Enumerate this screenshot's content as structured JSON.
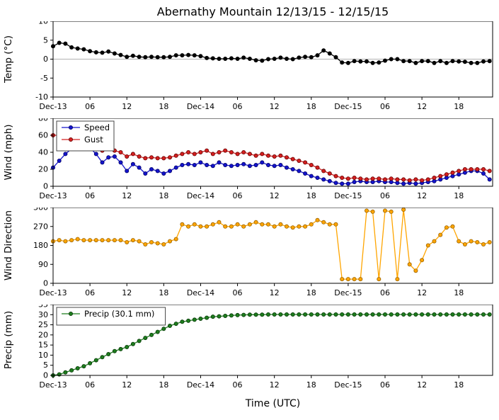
{
  "page": {
    "title": "Abernathy Mountain 12/13/15 - 12/15/15",
    "xlabel": "Time (UTC)"
  },
  "x_axis": {
    "range": [
      0,
      71.5
    ],
    "tick_positions": [
      0,
      6,
      12,
      18,
      24,
      30,
      36,
      42,
      48,
      54,
      60,
      66
    ],
    "tick_labels": [
      "Dec-13",
      "06",
      "12",
      "18",
      "Dec-14",
      "06",
      "12",
      "18",
      "Dec-15",
      "06",
      "12",
      "18"
    ],
    "hours": [
      0,
      1,
      2,
      3,
      4,
      5,
      6,
      7,
      8,
      9,
      10,
      11,
      12,
      13,
      14,
      15,
      16,
      17,
      18,
      19,
      20,
      21,
      22,
      23,
      24,
      25,
      26,
      27,
      28,
      29,
      30,
      31,
      32,
      33,
      34,
      35,
      36,
      37,
      38,
      39,
      40,
      41,
      42,
      43,
      44,
      45,
      46,
      47,
      48,
      49,
      50,
      51,
      52,
      53,
      54,
      55,
      56,
      57,
      58,
      59,
      60,
      61,
      62,
      63,
      64,
      65,
      66,
      67,
      68,
      69,
      70,
      71
    ]
  },
  "chart_data": [
    {
      "id": "temp",
      "type": "line",
      "ylabel": "Temp (°C)",
      "ylim": [
        -10,
        10
      ],
      "yticks": [
        10,
        5,
        0,
        -5,
        -10
      ],
      "zero_line": true,
      "series": [
        {
          "name": "Temp",
          "color": "#000000",
          "edge": "#000000",
          "values": [
            3.4,
            4.3,
            4.1,
            3.1,
            2.8,
            2.6,
            2.1,
            1.8,
            1.7,
            2.0,
            1.5,
            1.1,
            0.6,
            0.9,
            0.6,
            0.5,
            0.6,
            0.5,
            0.5,
            0.6,
            1.0,
            1.0,
            1.1,
            1.0,
            0.8,
            0.3,
            0.2,
            0.1,
            0.1,
            0.2,
            0.1,
            0.4,
            0.1,
            -0.3,
            -0.4,
            0.0,
            0.1,
            0.4,
            0.1,
            0.0,
            0.4,
            0.6,
            0.5,
            1.0,
            2.3,
            1.5,
            0.5,
            -0.9,
            -1.0,
            -0.5,
            -0.6,
            -0.6,
            -1.0,
            -0.9,
            -0.4,
            0.0,
            0.0,
            -0.5,
            -0.5,
            -1.0,
            -0.5,
            -0.5,
            -1.0,
            -0.5,
            -1.0,
            -0.5,
            -0.6,
            -0.7,
            -1.0,
            -1.0,
            -0.6,
            -0.5
          ]
        }
      ]
    },
    {
      "id": "wind",
      "type": "line",
      "ylabel": "Wind (mph)",
      "ylim": [
        0,
        80
      ],
      "yticks": [
        80,
        60,
        40,
        20,
        0
      ],
      "zero_line": false,
      "legend": [
        {
          "label": "Speed",
          "series": 0
        },
        {
          "label": "Gust",
          "series": 1
        }
      ],
      "series": [
        {
          "name": "Speed",
          "color": "#1414cc",
          "edge": "#000066",
          "values": [
            22,
            30,
            38,
            44,
            46,
            44,
            45,
            38,
            28,
            34,
            35,
            28,
            18,
            26,
            22,
            15,
            20,
            18,
            15,
            18,
            22,
            25,
            26,
            25,
            28,
            25,
            24,
            28,
            25,
            24,
            25,
            26,
            24,
            25,
            28,
            25,
            24,
            25,
            22,
            20,
            18,
            15,
            12,
            10,
            8,
            6,
            4,
            3,
            3,
            5,
            6,
            5,
            5,
            6,
            5,
            5,
            4,
            3,
            4,
            3,
            4,
            5,
            6,
            8,
            10,
            12,
            14,
            16,
            18,
            18,
            15,
            8
          ]
        },
        {
          "name": "Gust",
          "color": "#d42020",
          "edge": "#660000",
          "values": [
            60,
            60,
            56,
            52,
            50,
            48,
            46,
            44,
            42,
            44,
            42,
            40,
            35,
            38,
            35,
            33,
            34,
            33,
            33,
            34,
            36,
            38,
            40,
            38,
            40,
            42,
            38,
            40,
            42,
            40,
            38,
            40,
            38,
            36,
            38,
            36,
            35,
            36,
            34,
            32,
            30,
            28,
            25,
            22,
            18,
            15,
            12,
            10,
            9,
            10,
            9,
            8,
            9,
            9,
            8,
            9,
            8,
            8,
            7,
            8,
            7,
            8,
            10,
            12,
            14,
            16,
            18,
            20,
            20,
            20,
            20,
            18
          ]
        }
      ]
    },
    {
      "id": "wind-direction",
      "type": "line",
      "ylabel": "Wind Direction",
      "ylim": [
        0,
        360
      ],
      "yticks": [
        360,
        270,
        180,
        90,
        0
      ],
      "zero_line": false,
      "series": [
        {
          "name": "Direction",
          "color": "#ffa500",
          "edge": "#996300",
          "values": [
            200,
            205,
            200,
            205,
            210,
            205,
            205,
            205,
            205,
            205,
            205,
            205,
            195,
            205,
            200,
            185,
            195,
            190,
            185,
            200,
            210,
            280,
            270,
            280,
            270,
            270,
            280,
            290,
            270,
            270,
            280,
            270,
            280,
            290,
            280,
            280,
            270,
            280,
            270,
            265,
            270,
            270,
            280,
            300,
            290,
            280,
            280,
            20,
            20,
            20,
            20,
            345,
            340,
            20,
            345,
            340,
            20,
            350,
            90,
            60,
            110,
            180,
            200,
            230,
            265,
            270,
            200,
            185,
            200,
            195,
            185,
            195
          ]
        }
      ]
    },
    {
      "id": "precip",
      "type": "line",
      "ylabel": "Precip (mm)",
      "ylim": [
        0,
        35
      ],
      "yticks": [
        35,
        30,
        25,
        20,
        15,
        10,
        5,
        0
      ],
      "zero_line": false,
      "legend": [
        {
          "label": "Precip (30.1 mm)",
          "series": 0
        }
      ],
      "series": [
        {
          "name": "Precip",
          "color": "#1e7d1e",
          "edge": "#073807",
          "values": [
            0,
            0.5,
            1.5,
            2.5,
            3.5,
            4.5,
            6,
            7.5,
            9,
            10.5,
            12,
            13,
            14,
            15.5,
            17,
            18.5,
            20,
            21.5,
            23,
            24.5,
            25.5,
            26.5,
            27,
            27.5,
            28,
            28.5,
            29,
            29.2,
            29.4,
            29.6,
            29.8,
            29.9,
            30,
            30,
            30,
            30.1,
            30.1,
            30.1,
            30.1,
            30.1,
            30.1,
            30.1,
            30.1,
            30.1,
            30.1,
            30.1,
            30.1,
            30.1,
            30.1,
            30.1,
            30.1,
            30.1,
            30.1,
            30.1,
            30.1,
            30.1,
            30.1,
            30.1,
            30.1,
            30.1,
            30.1,
            30.1,
            30.1,
            30.1,
            30.1,
            30.1,
            30.1,
            30.1,
            30.1,
            30.1,
            30.1,
            30.1
          ]
        }
      ]
    }
  ]
}
